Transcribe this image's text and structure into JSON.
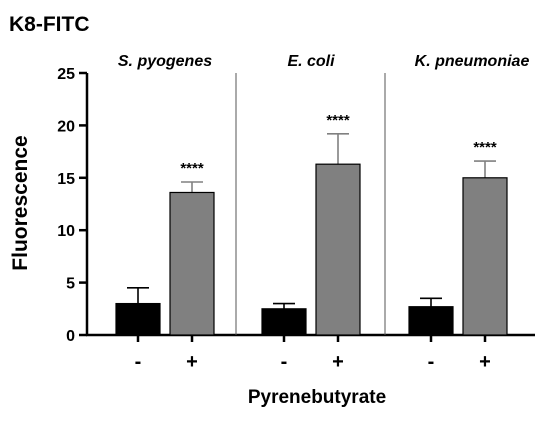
{
  "chart_data": {
    "type": "bar",
    "title": "K8-FITC",
    "ylabel": "Fluorescence",
    "xlabel": "Pyrenebutyrate",
    "ylim": [
      0,
      25
    ],
    "yticks": [
      0,
      5,
      10,
      15,
      20,
      25
    ],
    "categories": [
      "-",
      "+"
    ],
    "colors": {
      "minus": "#000000",
      "plus": "#808080"
    },
    "panels": [
      {
        "name": "S. pyogenes",
        "values": [
          3.0,
          13.6
        ],
        "errors": [
          1.5,
          1.0
        ],
        "significance": "****"
      },
      {
        "name": "E. coli",
        "values": [
          2.5,
          16.3
        ],
        "errors": [
          0.5,
          2.9
        ],
        "significance": "****"
      },
      {
        "name": "K. pneumoniae",
        "values": [
          2.7,
          15.0
        ],
        "errors": [
          0.8,
          1.6
        ],
        "significance": "****"
      }
    ]
  }
}
